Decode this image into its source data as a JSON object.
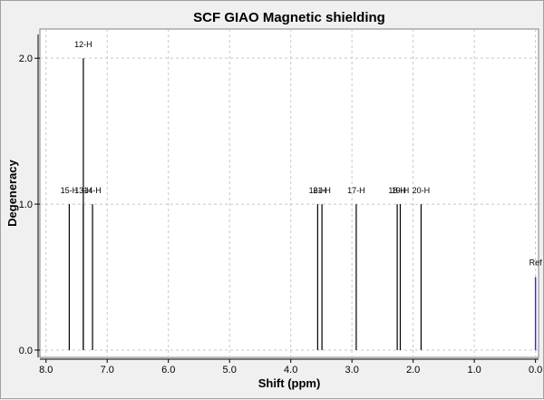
{
  "chart_data": {
    "type": "bar",
    "title": "SCF GIAO Magnetic shielding",
    "xlabel": "Shift (ppm)",
    "ylabel": "Degeneracy",
    "xlim": [
      8.1,
      -0.05
    ],
    "ylim": [
      -0.05,
      2.2
    ],
    "x_ticks": [
      "8.0",
      "7.0",
      "6.0",
      "5.0",
      "4.0",
      "3.0",
      "2.0",
      "1.0",
      "0.0"
    ],
    "x_tick_values": [
      8,
      7,
      6,
      5,
      4,
      3,
      2,
      1,
      0
    ],
    "y_ticks": [
      "0.0",
      "1.0",
      "2.0"
    ],
    "y_tick_values": [
      0,
      1,
      2
    ],
    "grid": true,
    "peaks": [
      {
        "label": "15-H",
        "shift": 7.62,
        "degeneracy": 1.0
      },
      {
        "label": "13-H",
        "shift": 7.39,
        "degeneracy": 1.0
      },
      {
        "label": "12-H",
        "shift": 7.39,
        "degeneracy": 2.0
      },
      {
        "label": "14-H",
        "shift": 7.24,
        "degeneracy": 1.0
      },
      {
        "label": "16-H",
        "shift": 3.56,
        "degeneracy": 1.0
      },
      {
        "label": "21-H",
        "shift": 3.49,
        "degeneracy": 1.0
      },
      {
        "label": "17-H",
        "shift": 2.93,
        "degeneracy": 1.0
      },
      {
        "label": "18-H",
        "shift": 2.26,
        "degeneracy": 1.0
      },
      {
        "label": "19-H",
        "shift": 2.21,
        "degeneracy": 1.0
      },
      {
        "label": "20-H",
        "shift": 1.87,
        "degeneracy": 1.0
      }
    ],
    "reference": {
      "label": "Ref",
      "shift": 0.0,
      "degeneracy": 0.5,
      "color": "#3333cc"
    },
    "colors": {
      "peak": "#000000",
      "grid": "#c8c8c8",
      "plot_bg": "#ffffff",
      "window_bg": "#f0f0f0"
    }
  }
}
